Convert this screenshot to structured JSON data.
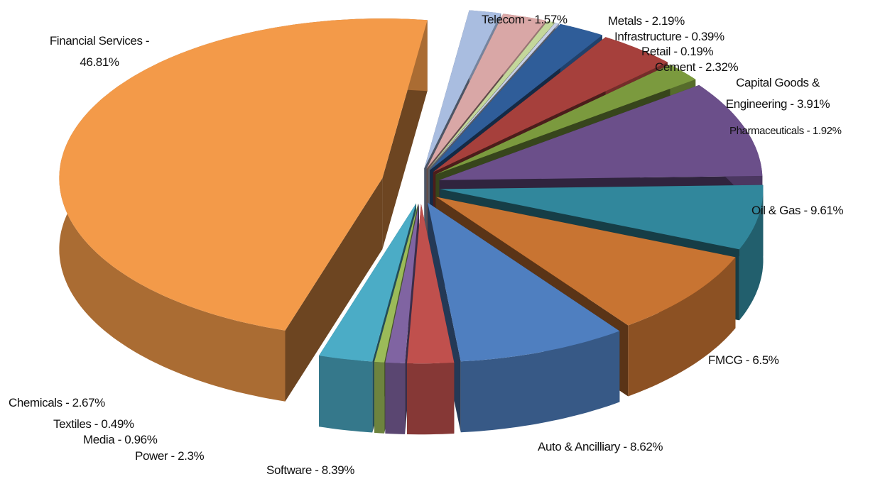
{
  "chart_data": {
    "type": "pie3d",
    "labels": [
      "Telecom - 1.57%",
      "Metals - 2.19%",
      "Infrastructure - 0.39%",
      "Retail - 0.19%",
      "Cement - 2.32%",
      "Capital Goods & Engineering - 3.91%",
      "Pharmaceuticals - 1.92%",
      "Oil & Gas  - 9.61%",
      "FMCG - 6.5%",
      "Auto & Ancilliary - 8.62%",
      "Software - 8.39%",
      "Power - 2.3%",
      "Media - 0.96%",
      "Textiles - 0.49%",
      "Chemicals - 2.67%",
      "Financial Services - 46.81%"
    ],
    "values": [
      1.57,
      2.19,
      0.39,
      0.19,
      2.32,
      3.91,
      1.92,
      9.61,
      6.5,
      8.62,
      8.39,
      2.3,
      0.96,
      0.49,
      2.67,
      46.81
    ],
    "colors": [
      "#a9bde0",
      "#d9a7a6",
      "#c4d79b",
      "#c6cfe6",
      "#2f5d99",
      "#a6403c",
      "#7b9a3e",
      "#6b4f8a",
      "#31879c",
      "#c87432",
      "#4f7fc0",
      "#c0504d",
      "#8064a2",
      "#9bbb59",
      "#4bacc6",
      "#f39a49"
    ]
  }
}
